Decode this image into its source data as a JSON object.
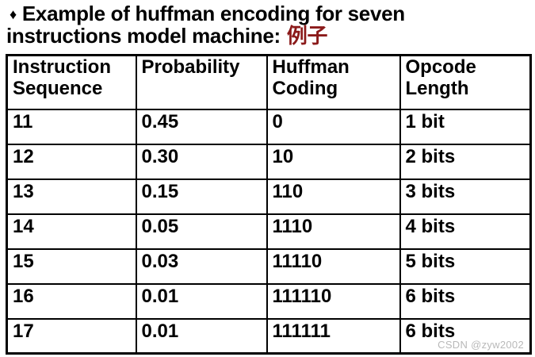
{
  "title": {
    "bullet": "♦",
    "line1": "Example of huffman encoding for seven",
    "line2": "instructions model machine:",
    "highlight": "例子",
    "highlight_color": "#8b1a1a"
  },
  "table": {
    "headers": [
      "Instruction Sequence",
      "Probability",
      "Huffman Coding",
      "Opcode Length"
    ],
    "rows": [
      [
        "11",
        "0.45",
        "0",
        "1 bit"
      ],
      [
        "12",
        "0.30",
        "10",
        "2 bits"
      ],
      [
        "13",
        "0.15",
        "110",
        "3 bits"
      ],
      [
        "14",
        "0.05",
        "1110",
        "4 bits"
      ],
      [
        "15",
        "0.03",
        "11110",
        "5 bits"
      ],
      [
        "16",
        "0.01",
        "111110",
        "6 bits"
      ],
      [
        "17",
        "0.01",
        "111111",
        "6 bits"
      ]
    ]
  },
  "watermark": "CSDN @zyw2002"
}
